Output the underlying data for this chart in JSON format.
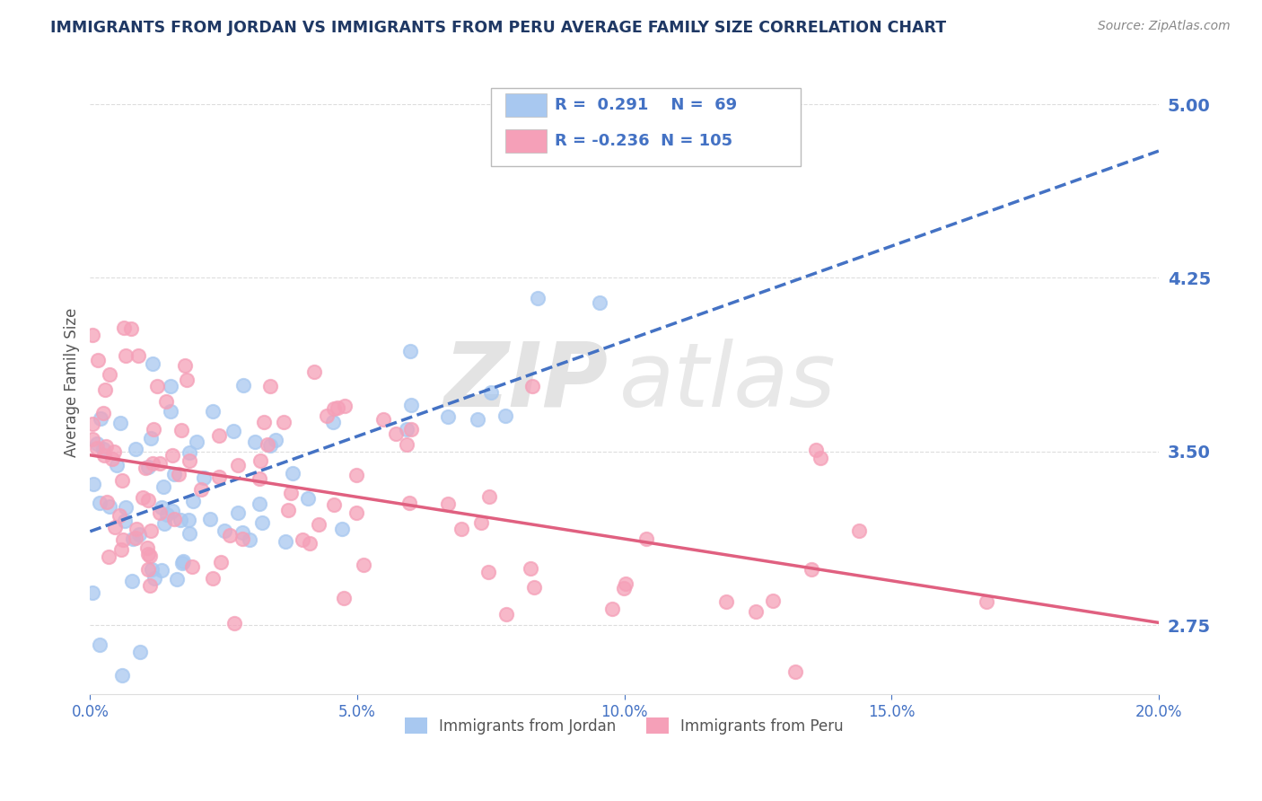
{
  "title": "IMMIGRANTS FROM JORDAN VS IMMIGRANTS FROM PERU AVERAGE FAMILY SIZE CORRELATION CHART",
  "source": "Source: ZipAtlas.com",
  "ylabel": "Average Family Size",
  "y_ticks": [
    2.75,
    3.5,
    4.25,
    5.0
  ],
  "x_min": 0.0,
  "x_max": 0.2,
  "y_min": 2.45,
  "y_max": 5.15,
  "jordan_color": "#A8C8F0",
  "peru_color": "#F5A0B8",
  "jordan_line_color": "#4472C4",
  "peru_line_color": "#E06080",
  "jordan_R": 0.291,
  "jordan_N": 69,
  "peru_R": -0.236,
  "peru_N": 105,
  "text_color": "#4472C4",
  "title_color": "#1F3864",
  "grid_color": "#DDDDDD",
  "legend_text_color": "#333333",
  "legend_value_color": "#4472C4"
}
